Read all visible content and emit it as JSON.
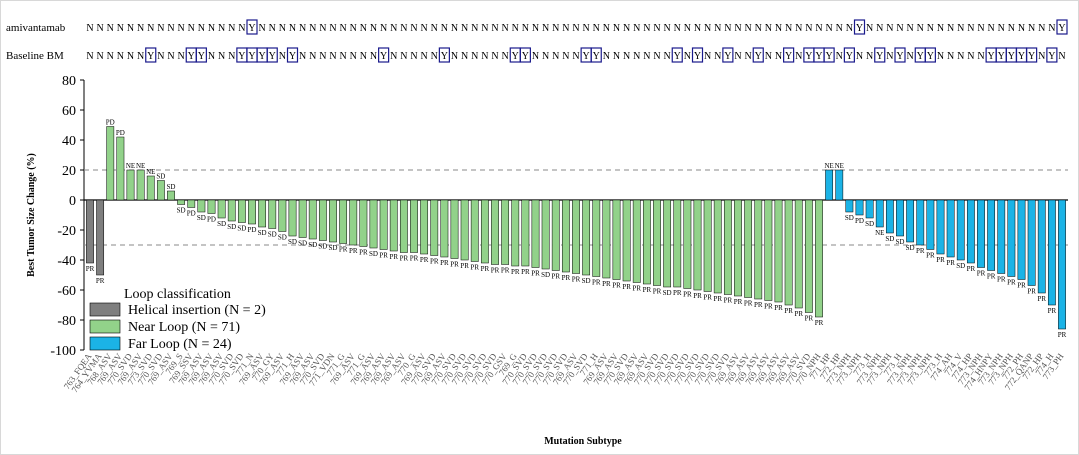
{
  "chart_data": {
    "type": "bar",
    "ylabel": "Best Tumor Size Change (%)",
    "xlabel": "Mutation Subtype",
    "ylim": [
      -100,
      80
    ],
    "yticks": [
      80,
      60,
      40,
      20,
      0,
      -20,
      -40,
      -60,
      -80,
      -100
    ],
    "reference_lines": [
      20,
      -30
    ],
    "legend": {
      "title": "Loop classification",
      "entries": [
        {
          "key": "helical",
          "label": "Helical insertion (N = 2)",
          "color": "#7f7f7f"
        },
        {
          "key": "near",
          "label": "Near Loop (N = 71)",
          "color": "#92d28a"
        },
        {
          "key": "far",
          "label": "Far Loop (N = 24)",
          "color": "#1bb3e6"
        }
      ],
      "placement": "bottom-left"
    },
    "track_labels": [
      "amivantamab",
      "Baseline BM"
    ],
    "series": [
      {
        "name": "Helical insertion",
        "group": "helical",
        "categories": [
          "763_FQEA",
          "764_YVMA"
        ],
        "values": [
          -42,
          -50
        ],
        "responses": [
          "PR",
          "PR"
        ],
        "amivantamab": [
          "N",
          "N"
        ],
        "baseline_bm": [
          "N",
          "N"
        ]
      },
      {
        "name": "Near Loop",
        "group": "near",
        "categories": [
          "768_ASV",
          "769_ASV",
          "770_SVD",
          "769_ASV",
          "773_SVD",
          "770_SVD",
          "769_ASV",
          "769_S",
          "769_SSV",
          "769_ASV",
          "769_ASV",
          "769_ASV",
          "770_SVD",
          "770_SVD",
          "771_N",
          "769_ASV",
          "770_GY",
          "769_ASV",
          "771_H",
          "769_ASV",
          "769_ASV",
          "770_SVD",
          "771_VDN",
          "771_G",
          "769_ASV",
          "771_G",
          "769_ASV",
          "769_ASV",
          "769_ASV",
          "769_ASV",
          "770_G",
          "769_ASV",
          "770_SVD",
          "769_ASV",
          "770_SVD",
          "770_SVD",
          "770_SVD",
          "770_SVD",
          "770_SVD",
          "770_GSV",
          "769_G",
          "770_SVD",
          "770_SVD",
          "770_SVD",
          "770_SVD",
          "770_SVD",
          "769_ASV",
          "770_SVD",
          "771_H",
          "769_ASV",
          "769_ASV",
          "770_SVD",
          "769_ASV",
          "769_ASV",
          "770_SVD",
          "770_SVD",
          "770_SVD",
          "770_SVD",
          "770_SVD",
          "770_SVD",
          "770_SVD",
          "770_SVD",
          "769_ASV",
          "769_ASV",
          "769_ASV",
          "769_ASV",
          "769_ASV",
          "769_ASV",
          "769_ASV",
          "770_SVD",
          "770_NPH"
        ],
        "values": [
          49,
          42,
          20,
          20,
          16,
          13,
          6,
          -3,
          -5,
          -8,
          -9,
          -12,
          -14,
          -15,
          -16,
          -18,
          -19,
          -21,
          -24,
          -25,
          -26,
          -27,
          -28,
          -29,
          -30,
          -31,
          -32,
          -33,
          -34,
          -35,
          -35,
          -36,
          -37,
          -38,
          -39,
          -40,
          -41,
          -42,
          -43,
          -43,
          -44,
          -44,
          -45,
          -46,
          -47,
          -48,
          -49,
          -50,
          -51,
          -52,
          -53,
          -54,
          -55,
          -56,
          -57,
          -58,
          -58,
          -59,
          -60,
          -61,
          -62,
          -63,
          -64,
          -65,
          -66,
          -67,
          -68,
          -70,
          -72,
          -75,
          -78
        ],
        "responses": [
          "PD",
          "PD",
          "NE",
          "NE",
          "NE",
          "SD",
          "SD",
          "SD",
          "PD",
          "SD",
          "PD",
          "SD",
          "SD",
          "SD",
          "PD",
          "SD",
          "SD",
          "SD",
          "SD",
          "SD",
          "SD",
          "SD",
          "SD",
          "PR",
          "PR",
          "PR",
          "SD",
          "PR",
          "PR",
          "PR",
          "PR",
          "PR",
          "PR",
          "PR",
          "PR",
          "PR",
          "PR",
          "PR",
          "PR",
          "PR",
          "PR",
          "PR",
          "PR",
          "SD",
          "PR",
          "PR",
          "PR",
          "SD",
          "PR",
          "PR",
          "PR",
          "PR",
          "PR",
          "PR",
          "PR",
          "SD",
          "PR",
          "PR",
          "PR",
          "PR",
          "PR",
          "PR",
          "PR",
          "PR",
          "PR",
          "PR",
          "PR",
          "PR",
          "PR",
          "PR",
          "PR"
        ],
        "amivantamab": [
          "N",
          "N",
          "N",
          "N",
          "N",
          "N",
          "N",
          "N",
          "N",
          "N",
          "N",
          "N",
          "N",
          "N",
          "N",
          "N",
          "N",
          "N",
          "N",
          "N",
          "N",
          "N",
          "N",
          "N",
          "N",
          "N",
          "N",
          "N",
          "N",
          "N",
          "N",
          "N",
          "N",
          "N",
          "N",
          "N",
          "N",
          "N",
          "N",
          "N",
          "N",
          "N",
          "N",
          "N",
          "N",
          "N",
          "N",
          "N",
          "N",
          "N",
          "N",
          "N",
          "N",
          "N",
          "N",
          "N",
          "N",
          "N",
          "N",
          "N",
          "N",
          "N",
          "N",
          "N",
          "N",
          "N",
          "N",
          "N",
          "N",
          "N",
          "N"
        ],
        "baseline_bm": [
          "N",
          "N",
          "N",
          "N",
          "N",
          "N",
          "N",
          "N",
          "N",
          "N",
          "N",
          "N",
          "N",
          "N",
          "N",
          "N",
          "N",
          "N",
          "N",
          "N",
          "N",
          "N",
          "N",
          "N",
          "N",
          "N",
          "N",
          "N",
          "N",
          "N",
          "N",
          "N",
          "N",
          "N",
          "N",
          "N",
          "N",
          "N",
          "N",
          "N",
          "N",
          "N",
          "N",
          "N",
          "N",
          "N",
          "N",
          "N",
          "N",
          "N",
          "N",
          "N",
          "N",
          "N",
          "N",
          "N",
          "N",
          "N",
          "N",
          "N",
          "N",
          "N",
          "N",
          "N",
          "N",
          "N",
          "N",
          "N",
          "N",
          "N",
          "N"
        ]
      },
      {
        "name": "Far Loop",
        "group": "far",
        "categories": [
          "771_HP",
          "772_HP",
          "773_NPH",
          "773_NPH",
          "773_H",
          "773_NPH",
          "773_NPH",
          "773_H",
          "773_NPH",
          "773_NPH",
          "773_NPH",
          "773_H",
          "774_AH",
          "774_V",
          "774_HP",
          "773_NPH",
          "774_HNPY",
          "773_NPH",
          "773_NPH",
          "772_PH",
          "772_QANP",
          "772_HP",
          "774_H",
          "773_PH"
        ],
        "values": [
          20,
          20,
          -8,
          -10,
          -12,
          -18,
          -22,
          -24,
          -28,
          -30,
          -33,
          -36,
          -38,
          -40,
          -42,
          -45,
          -47,
          -49,
          -51,
          -53,
          -57,
          -62,
          -70,
          -86
        ],
        "responses": [
          "NE",
          "NE",
          "SD",
          "PD",
          "SD",
          "NE",
          "SD",
          "SD",
          "SD",
          "PR",
          "PR",
          "PR",
          "PR",
          "SD",
          "PR",
          "PR",
          "PR",
          "PR",
          "PR",
          "PR",
          "PR",
          "PR",
          "PR",
          "PR"
        ],
        "amivantamab": [
          "N",
          "N",
          "N",
          "N",
          "N",
          "N",
          "N",
          "N",
          "N",
          "N",
          "N",
          "N",
          "N",
          "N",
          "N",
          "N",
          "N",
          "N",
          "N",
          "N",
          "N",
          "N",
          "N",
          "N"
        ],
        "baseline_bm": [
          "N",
          "N",
          "N",
          "N",
          "N",
          "N",
          "N",
          "N",
          "N",
          "N",
          "N",
          "N",
          "N",
          "N",
          "N",
          "N",
          "N",
          "N",
          "N",
          "N",
          "N",
          "N",
          "N",
          "N"
        ]
      }
    ],
    "amivantamab_Y_positions": [
      16,
      76,
      96
    ],
    "baseline_bm_Y_positions": [
      6,
      10,
      11,
      15,
      16,
      17,
      18,
      20,
      29,
      35,
      42,
      43,
      49,
      50,
      58,
      60,
      63,
      66,
      69,
      71,
      72,
      73,
      75,
      78,
      80,
      82,
      83,
      89,
      90,
      91,
      92,
      93,
      95
    ]
  }
}
